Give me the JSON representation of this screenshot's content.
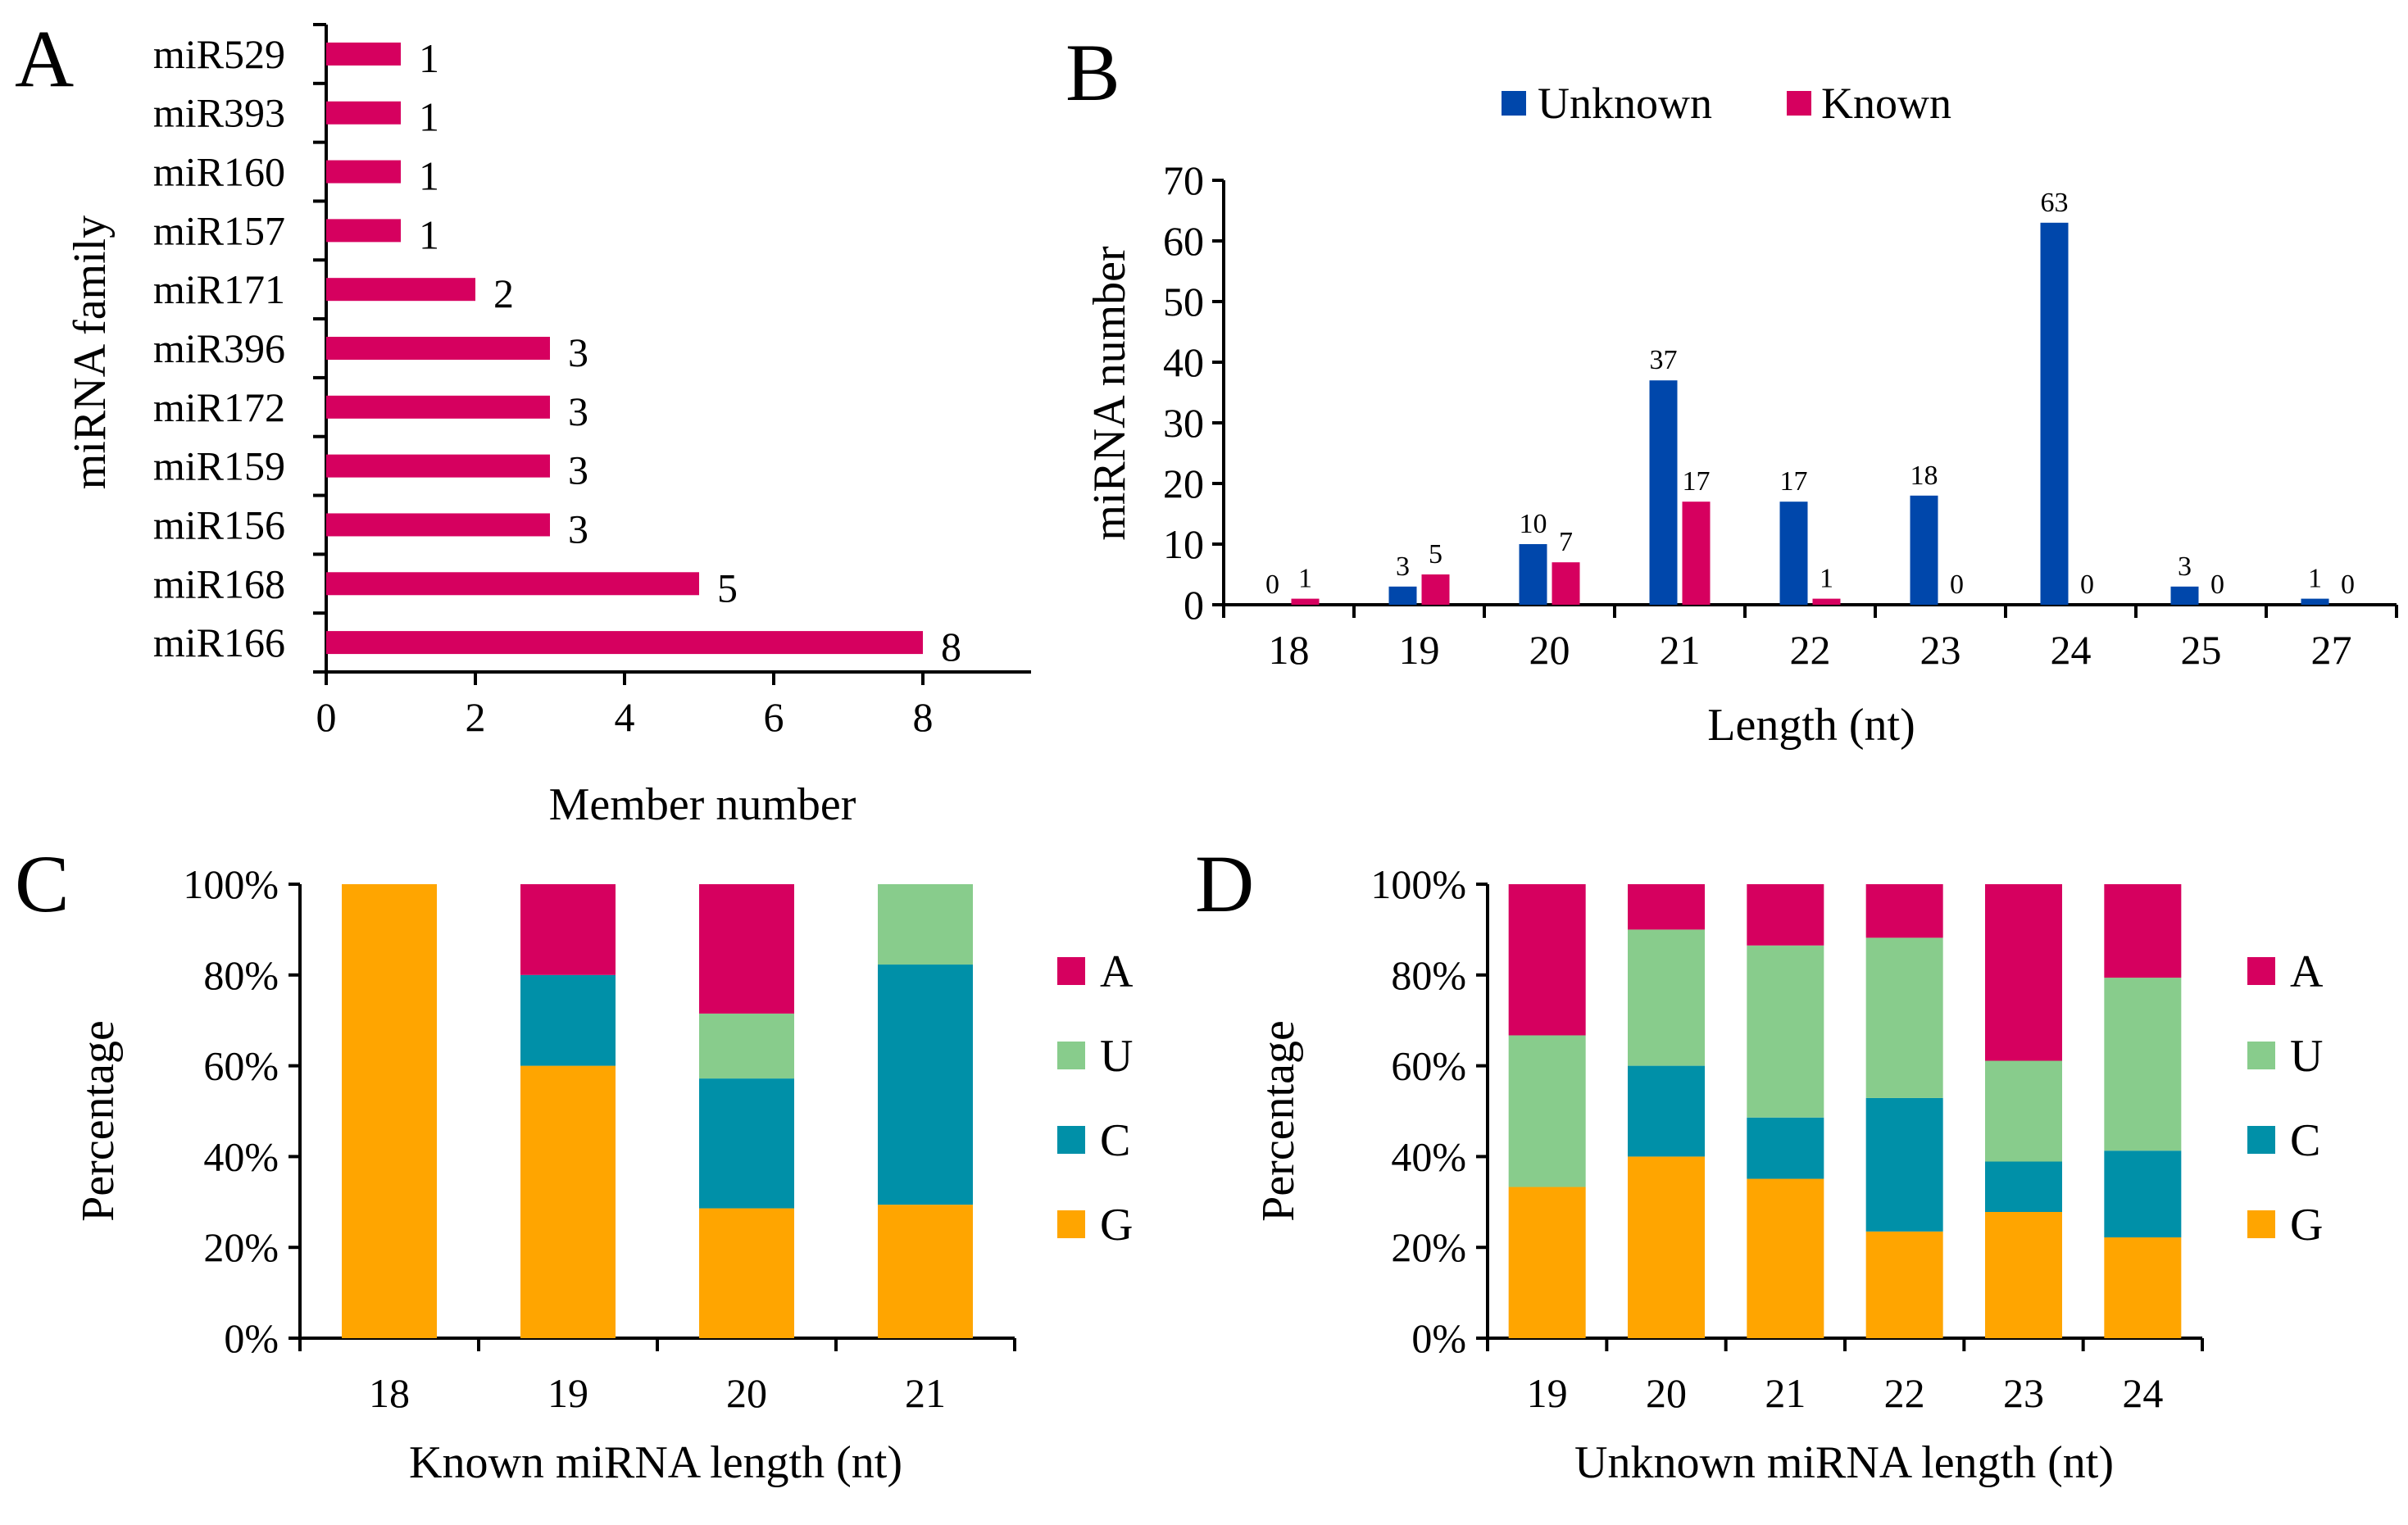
{
  "chart_data": [
    {
      "panel": "A",
      "type": "bar",
      "orientation": "horizontal",
      "xlabel": "Member number",
      "ylabel": "miRNA family",
      "xlim": [
        0,
        9
      ],
      "xticks": [
        "0",
        "2",
        "4",
        "6",
        "8"
      ],
      "color": "#D6005F",
      "categories": [
        "miR529",
        "miR393",
        "miR160",
        "miR157",
        "miR171",
        "miR396",
        "miR172",
        "miR159",
        "miR156",
        "miR168",
        "miR166"
      ],
      "values": [
        1,
        1,
        1,
        1,
        2,
        3,
        3,
        3,
        3,
        5,
        8
      ],
      "labels": [
        "1",
        "1",
        "1",
        "1",
        "2",
        "3",
        "3",
        "3",
        "3",
        "5",
        "8"
      ]
    },
    {
      "panel": "B",
      "type": "bar",
      "xlabel": "Length (nt)",
      "ylabel": "miRNA number",
      "ylim": [
        0,
        70
      ],
      "yticks": [
        "0",
        "10",
        "20",
        "30",
        "40",
        "50",
        "60",
        "70"
      ],
      "categories": [
        "18",
        "19",
        "20",
        "21",
        "22",
        "23",
        "24",
        "25",
        "27"
      ],
      "series": [
        {
          "name": "Unknown",
          "color": "#0047AB",
          "values": [
            0,
            3,
            10,
            37,
            17,
            18,
            63,
            3,
            1
          ],
          "labels": [
            "0",
            "3",
            "10",
            "37",
            "17",
            "18",
            "63",
            "3",
            "1"
          ]
        },
        {
          "name": "Known",
          "color": "#D6005F",
          "values": [
            1,
            5,
            7,
            17,
            1,
            0,
            0,
            0,
            0
          ],
          "labels": [
            "1",
            "5",
            "7",
            "17",
            "1",
            "0",
            "0",
            "0",
            "0"
          ]
        }
      ]
    },
    {
      "panel": "C",
      "type": "bar",
      "stacked": true,
      "xlabel": "Known miRNA length (nt)",
      "ylabel": "Percentage",
      "ylim": [
        0,
        100
      ],
      "yticks": [
        "0%",
        "20%",
        "40%",
        "60%",
        "80%",
        "100%"
      ],
      "categories": [
        "18",
        "19",
        "20",
        "21"
      ],
      "series": [
        {
          "name": "G",
          "color": "#FFA500",
          "values": [
            100,
            60,
            28.6,
            29.4
          ]
        },
        {
          "name": "C",
          "color": "#0090A8",
          "values": [
            0,
            20,
            28.6,
            52.9
          ]
        },
        {
          "name": "U",
          "color": "#88CC8C",
          "values": [
            0,
            0,
            14.3,
            17.7
          ]
        },
        {
          "name": "A",
          "color": "#D6005F",
          "values": [
            0,
            20,
            28.5,
            0
          ]
        }
      ],
      "legend": [
        "A",
        "U",
        "C",
        "G"
      ]
    },
    {
      "panel": "D",
      "type": "bar",
      "stacked": true,
      "xlabel": "Unknown miRNA length (nt)",
      "ylabel": "Percentage",
      "ylim": [
        0,
        100
      ],
      "yticks": [
        "0%",
        "20%",
        "40%",
        "60%",
        "80%",
        "100%"
      ],
      "categories": [
        "19",
        "20",
        "21",
        "22",
        "23",
        "24"
      ],
      "series": [
        {
          "name": "G",
          "color": "#FFA500",
          "values": [
            33.3,
            40,
            35.1,
            23.5,
            27.8,
            22.2
          ]
        },
        {
          "name": "C",
          "color": "#0090A8",
          "values": [
            0,
            20,
            13.5,
            29.4,
            11.1,
            19.1
          ]
        },
        {
          "name": "U",
          "color": "#88CC8C",
          "values": [
            33.4,
            30,
            37.9,
            35.3,
            22.2,
            38.1
          ]
        },
        {
          "name": "A",
          "color": "#D6005F",
          "values": [
            33.3,
            10,
            13.5,
            11.8,
            38.9,
            20.6
          ]
        }
      ],
      "legend": [
        "A",
        "U",
        "C",
        "G"
      ]
    }
  ]
}
